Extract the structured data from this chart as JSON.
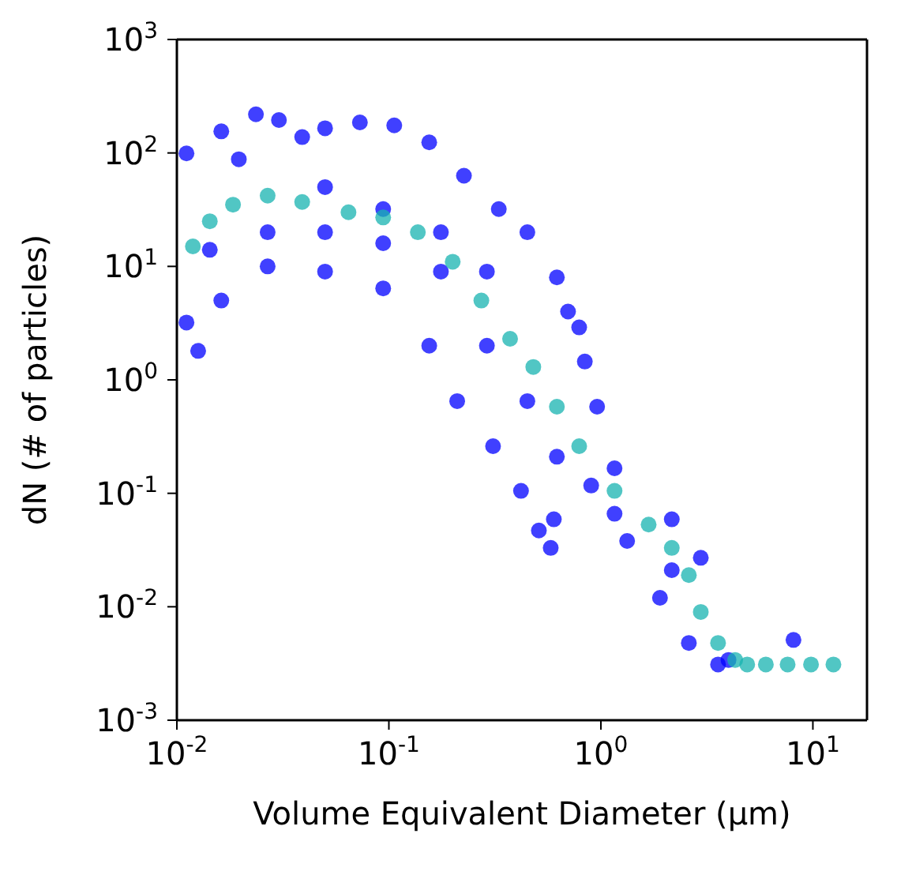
{
  "chart_data": {
    "type": "scatter",
    "xlabel": "Volume Equivalent Diameter (μm)",
    "ylabel": "dN (# of particles)",
    "log": "xy",
    "marker": "circle",
    "xlim": [
      0.01,
      18
    ],
    "ylim": [
      0.001,
      1000
    ],
    "xticks": [
      {
        "value": 0.01,
        "label": "10$^{-2}$"
      },
      {
        "value": 0.1,
        "label": "10$^{-1}$"
      },
      {
        "value": 1,
        "label": "10$^{0}$"
      },
      {
        "value": 10,
        "label": "10$^{1}$"
      }
    ],
    "yticks": [
      {
        "value": 0.001,
        "label": "10$^{-3}$"
      },
      {
        "value": 0.01,
        "label": "10$^{-2}$"
      },
      {
        "value": 0.1,
        "label": "10$^{-1}$"
      },
      {
        "value": 1,
        "label": "10$^{0}$"
      },
      {
        "value": 10,
        "label": "10$^{1}$"
      },
      {
        "value": 100,
        "label": "10$^{2}$"
      },
      {
        "value": 1000,
        "label": "10$^{3}$"
      }
    ],
    "series": [
      {
        "color": "#0000ff",
        "x": [
          0.0111,
          0.0162,
          0.0236,
          0.0303,
          0.039,
          0.05,
          0.073,
          0.106,
          0.155,
          0.226,
          0.33,
          0.45,
          0.62,
          0.79,
          0.96,
          0.0196,
          0.05,
          0.094,
          0.176,
          0.29,
          0.0126,
          0.0111,
          0.0162,
          0.0268,
          0.05,
          0.094,
          0.155,
          0.21,
          0.31,
          0.42,
          0.51,
          0.58,
          0.9,
          1.33,
          1.9,
          2.6,
          3.57,
          8.1,
          0.0143,
          0.0268,
          0.05,
          0.094,
          0.176,
          0.29,
          0.45,
          0.62,
          1.16,
          2.16,
          4.0,
          1.16,
          2.16,
          2.96,
          0.7,
          0.84,
          0.6
        ],
        "values": [
          99,
          155,
          219,
          195,
          138,
          165,
          186,
          175,
          124,
          63,
          32,
          20,
          8,
          2.9,
          0.58,
          88,
          50,
          32,
          20,
          9,
          1.8,
          3.2,
          5,
          10,
          9,
          6.4,
          2,
          0.65,
          0.26,
          0.105,
          0.047,
          0.033,
          0.117,
          0.038,
          0.012,
          0.0048,
          0.0031,
          0.0051,
          14,
          20,
          20,
          16,
          9,
          2,
          0.65,
          0.21,
          0.066,
          0.021,
          0.0034,
          0.166,
          0.059,
          0.027,
          4,
          1.45,
          0.059
        ]
      },
      {
        "color": "#17b3b0",
        "x": [
          0.0119,
          0.0143,
          0.0184,
          0.0268,
          0.039,
          0.0645,
          0.094,
          0.137,
          0.2,
          0.273,
          0.373,
          0.48,
          0.62,
          0.79,
          1.16,
          1.68,
          2.16,
          2.6,
          2.96,
          3.57,
          4.3,
          4.9,
          6.0,
          7.6,
          9.8,
          12.5
        ],
        "values": [
          15,
          25,
          35,
          42,
          37,
          30,
          27,
          20,
          11,
          5,
          2.3,
          1.3,
          0.58,
          0.26,
          0.105,
          0.053,
          0.033,
          0.019,
          0.009,
          0.0048,
          0.0034,
          0.0031,
          0.0031,
          0.0031,
          0.0031,
          0.0031
        ]
      }
    ]
  }
}
